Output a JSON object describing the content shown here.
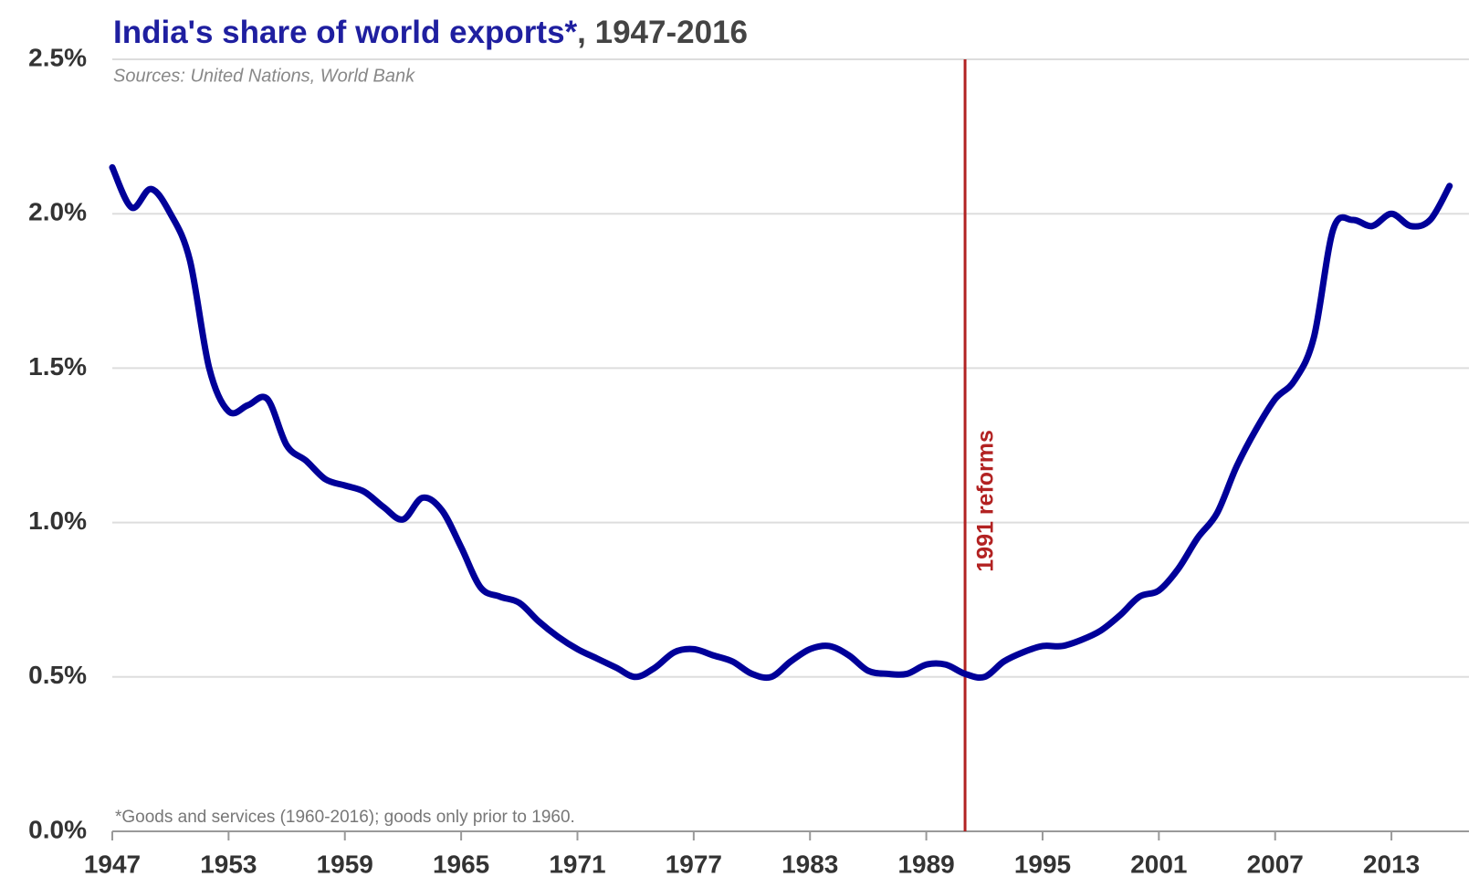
{
  "chart_data": {
    "type": "line",
    "title": "India's share of world exports*",
    "title_period": ", 1947-2016",
    "subtitle": "Sources: United Nations, World Bank",
    "footnote": "*Goods and services (1960-2016); goods only prior to 1960.",
    "x": [
      1947,
      1948,
      1949,
      1950,
      1951,
      1952,
      1953,
      1954,
      1955,
      1956,
      1957,
      1958,
      1959,
      1960,
      1961,
      1962,
      1963,
      1964,
      1965,
      1966,
      1967,
      1968,
      1969,
      1970,
      1971,
      1972,
      1973,
      1974,
      1975,
      1976,
      1977,
      1978,
      1979,
      1980,
      1981,
      1982,
      1983,
      1984,
      1985,
      1986,
      1987,
      1988,
      1989,
      1990,
      1991,
      1992,
      1993,
      1994,
      1995,
      1996,
      1997,
      1998,
      1999,
      2000,
      2001,
      2002,
      2003,
      2004,
      2005,
      2006,
      2007,
      2008,
      2009,
      2010,
      2011,
      2012,
      2013,
      2014,
      2015,
      2016
    ],
    "series": [
      {
        "name": "India's share of world exports",
        "color": "#000099",
        "values": [
          2.15,
          2.02,
          2.08,
          2.0,
          1.85,
          1.5,
          1.36,
          1.38,
          1.4,
          1.25,
          1.2,
          1.14,
          1.12,
          1.1,
          1.05,
          1.01,
          1.08,
          1.04,
          0.92,
          0.79,
          0.76,
          0.74,
          0.68,
          0.63,
          0.59,
          0.56,
          0.53,
          0.5,
          0.53,
          0.58,
          0.59,
          0.57,
          0.55,
          0.51,
          0.5,
          0.55,
          0.59,
          0.6,
          0.57,
          0.52,
          0.51,
          0.51,
          0.54,
          0.54,
          0.51,
          0.5,
          0.55,
          0.58,
          0.6,
          0.6,
          0.62,
          0.65,
          0.7,
          0.76,
          0.78,
          0.85,
          0.95,
          1.03,
          1.18,
          1.3,
          1.4,
          1.46,
          1.6,
          1.95,
          1.98,
          1.96,
          2.0,
          1.96,
          1.98,
          2.09
        ]
      }
    ],
    "xlim": [
      1947,
      2017
    ],
    "xticks": [
      1947,
      1953,
      1959,
      1965,
      1971,
      1977,
      1983,
      1989,
      1995,
      2001,
      2007,
      2013
    ],
    "ylim": [
      0,
      2.5
    ],
    "yticks": [
      {
        "value": 0,
        "label": "0.0%"
      },
      {
        "value": 0.5,
        "label": "0.5%"
      },
      {
        "value": 1,
        "label": "1.0%"
      },
      {
        "value": 1.5,
        "label": "1.5%"
      },
      {
        "value": 2,
        "label": "2.0%"
      },
      {
        "value": 2.5,
        "label": "2.5%"
      }
    ],
    "grid": true,
    "annotations": [
      {
        "x": 1991,
        "text": "1991 reforms",
        "color": "#b22222"
      }
    ]
  }
}
